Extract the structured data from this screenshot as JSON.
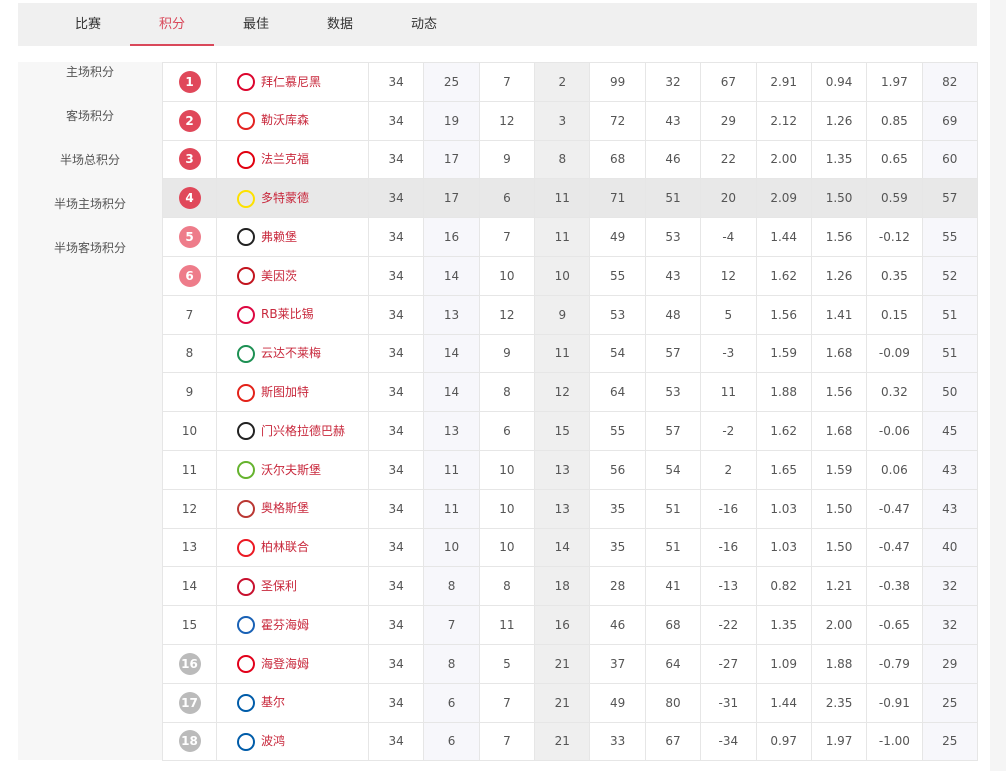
{
  "tabs": [
    "比赛",
    "积分",
    "最佳",
    "数据",
    "动态"
  ],
  "active_tab": 1,
  "sidebar": [
    "主场积分",
    "客场积分",
    "半场总积分",
    "半场主场积分",
    "半场客场积分"
  ],
  "colors": {
    "accent": "#d9485a",
    "top4": "#e0485a",
    "europa": "#ee7c8a",
    "relegation": "#bbbbbb"
  },
  "rows": [
    [
      "1",
      "拜仁慕尼黑",
      "34",
      "25",
      "7",
      "2",
      "99",
      "32",
      "67",
      "2.91",
      "0.94",
      "1.97",
      "82"
    ],
    [
      "2",
      "勒沃库森",
      "34",
      "19",
      "12",
      "3",
      "72",
      "43",
      "29",
      "2.12",
      "1.26",
      "0.85",
      "69"
    ],
    [
      "3",
      "法兰克福",
      "34",
      "17",
      "9",
      "8",
      "68",
      "46",
      "22",
      "2.00",
      "1.35",
      "0.65",
      "60"
    ],
    [
      "4",
      "多特蒙德",
      "34",
      "17",
      "6",
      "11",
      "71",
      "51",
      "20",
      "2.09",
      "1.50",
      "0.59",
      "57"
    ],
    [
      "5",
      "弗赖堡",
      "34",
      "16",
      "7",
      "11",
      "49",
      "53",
      "-4",
      "1.44",
      "1.56",
      "-0.12",
      "55"
    ],
    [
      "6",
      "美因茨",
      "34",
      "14",
      "10",
      "10",
      "55",
      "43",
      "12",
      "1.62",
      "1.26",
      "0.35",
      "52"
    ],
    [
      "7",
      "RB莱比锡",
      "34",
      "13",
      "12",
      "9",
      "53",
      "48",
      "5",
      "1.56",
      "1.41",
      "0.15",
      "51"
    ],
    [
      "8",
      "云达不莱梅",
      "34",
      "14",
      "9",
      "11",
      "54",
      "57",
      "-3",
      "1.59",
      "1.68",
      "-0.09",
      "51"
    ],
    [
      "9",
      "斯图加特",
      "34",
      "14",
      "8",
      "12",
      "64",
      "53",
      "11",
      "1.88",
      "1.56",
      "0.32",
      "50"
    ],
    [
      "10",
      "门兴格拉德巴赫",
      "34",
      "13",
      "6",
      "15",
      "55",
      "57",
      "-2",
      "1.62",
      "1.68",
      "-0.06",
      "45"
    ],
    [
      "11",
      "沃尔夫斯堡",
      "34",
      "11",
      "10",
      "13",
      "56",
      "54",
      "2",
      "1.65",
      "1.59",
      "0.06",
      "43"
    ],
    [
      "12",
      "奥格斯堡",
      "34",
      "11",
      "10",
      "13",
      "35",
      "51",
      "-16",
      "1.03",
      "1.50",
      "-0.47",
      "43"
    ],
    [
      "13",
      "柏林联合",
      "34",
      "10",
      "10",
      "14",
      "35",
      "51",
      "-16",
      "1.03",
      "1.50",
      "-0.47",
      "40"
    ],
    [
      "14",
      "圣保利",
      "34",
      "8",
      "8",
      "18",
      "28",
      "41",
      "-13",
      "0.82",
      "1.21",
      "-0.38",
      "32"
    ],
    [
      "15",
      "霍芬海姆",
      "34",
      "7",
      "11",
      "16",
      "46",
      "68",
      "-22",
      "1.35",
      "2.00",
      "-0.65",
      "32"
    ],
    [
      "16",
      "海登海姆",
      "34",
      "8",
      "5",
      "21",
      "37",
      "64",
      "-27",
      "1.09",
      "1.88",
      "-0.79",
      "29"
    ],
    [
      "17",
      "基尔",
      "34",
      "6",
      "7",
      "21",
      "49",
      "80",
      "-31",
      "1.44",
      "2.35",
      "-0.91",
      "25"
    ],
    [
      "18",
      "波鸿",
      "34",
      "6",
      "7",
      "21",
      "33",
      "67",
      "-34",
      "0.97",
      "1.97",
      "-1.00",
      "25"
    ]
  ],
  "logo_colors": [
    "#dc052d",
    "#e32221",
    "#e1000f",
    "#fde100",
    "#222222",
    "#c3141e",
    "#dd0741",
    "#1d9053",
    "#e32219",
    "#222222",
    "#65b32e",
    "#ba3733",
    "#eb1923",
    "#c8102e",
    "#1961b5",
    "#e2001a",
    "#005ca9",
    "#005ca9"
  ]
}
